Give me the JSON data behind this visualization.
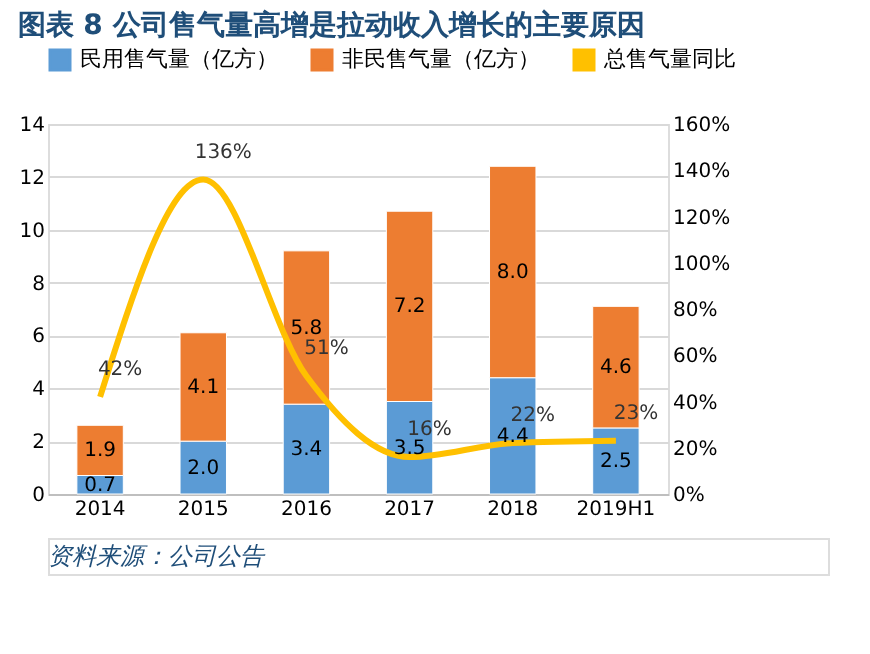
{
  "chart_data": {
    "type": "bar",
    "title": "图表 8   公司售气量高增是拉动收入增长的主要原因",
    "categories": [
      "2014",
      "2015",
      "2016",
      "2017",
      "2018",
      "2019H1"
    ],
    "stacked": true,
    "series": [
      {
        "name": "民用售气量（亿方）",
        "color": "#5b9bd5",
        "values": [
          0.7,
          2.0,
          3.4,
          3.5,
          4.4,
          2.5
        ],
        "value_labels": [
          "0.7",
          "2.0",
          "3.4",
          "3.5",
          "4.4",
          "2.5"
        ]
      },
      {
        "name": "非民售气量（亿方）",
        "color": "#ed7d31",
        "values": [
          1.9,
          4.1,
          5.8,
          7.2,
          8.0,
          4.6
        ],
        "value_labels": [
          "1.9",
          "4.1",
          "5.8",
          "7.2",
          "8.0",
          "4.6"
        ]
      },
      {
        "name": "总售气量同比",
        "type": "line",
        "axis": "y2",
        "color": "#ffc000",
        "values": [
          42,
          136,
          51,
          16,
          22,
          23
        ],
        "value_labels": [
          "42%",
          "136%",
          "51%",
          "16%",
          "22%",
          "23%"
        ]
      }
    ],
    "ylim": [
      0,
      14
    ],
    "yticks": [
      0,
      2,
      4,
      6,
      8,
      10,
      12,
      14
    ],
    "y2lim": [
      0,
      160
    ],
    "y2ticks": [
      {
        "value": 0,
        "label": "0%"
      },
      {
        "value": 20,
        "label": "20%"
      },
      {
        "value": 40,
        "label": "40%"
      },
      {
        "value": 60,
        "label": "60%"
      },
      {
        "value": 80,
        "label": "80%"
      },
      {
        "value": 100,
        "label": "100%"
      },
      {
        "value": 120,
        "label": "120%"
      },
      {
        "value": 140,
        "label": "140%"
      },
      {
        "value": 160,
        "label": "160%"
      }
    ],
    "grid": "y",
    "legend": "top",
    "marker": "none",
    "annotations": [
      "资料来源：公司公告"
    ]
  }
}
